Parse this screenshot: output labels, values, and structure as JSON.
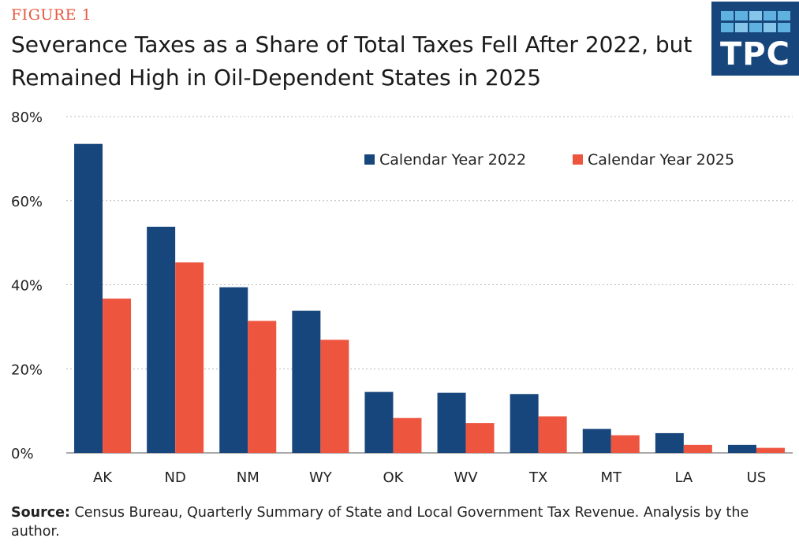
{
  "figure_label": "FIGURE 1",
  "logo": {
    "text": "TPC"
  },
  "source": {
    "label": "Source:",
    "text": "Census Bureau, Quarterly Summary of State and Local Government Tax Revenue. Analysis by the author."
  },
  "colors": {
    "series_2022": "#17467c",
    "series_2025": "#ee553f",
    "grid": "#bbbbbb",
    "accent": "#e8573f"
  },
  "chart_data": {
    "type": "bar",
    "title": "Severance Taxes as a Share of Total Taxes Fell After 2022, but Remained High in Oil-Dependent States in 2025",
    "xlabel": "",
    "ylabel": "",
    "categories": [
      "AK",
      "ND",
      "NM",
      "WY",
      "OK",
      "WV",
      "TX",
      "MT",
      "LA",
      "US"
    ],
    "series": [
      {
        "name": "Calendar Year 2022",
        "values": [
          73.5,
          53.8,
          39.4,
          33.8,
          14.5,
          14.3,
          14.0,
          5.7,
          4.7,
          1.9
        ]
      },
      {
        "name": "Calendar Year 2025",
        "values": [
          36.7,
          45.3,
          31.4,
          26.9,
          8.3,
          7.1,
          8.7,
          4.2,
          1.9,
          1.2
        ]
      }
    ],
    "ylim": [
      0,
      80
    ],
    "yticks": [
      0,
      20,
      40,
      60,
      80
    ],
    "ytick_labels": [
      "0%",
      "20%",
      "40%",
      "60%",
      "80%"
    ],
    "grid": true,
    "legend_position": "top-right"
  }
}
